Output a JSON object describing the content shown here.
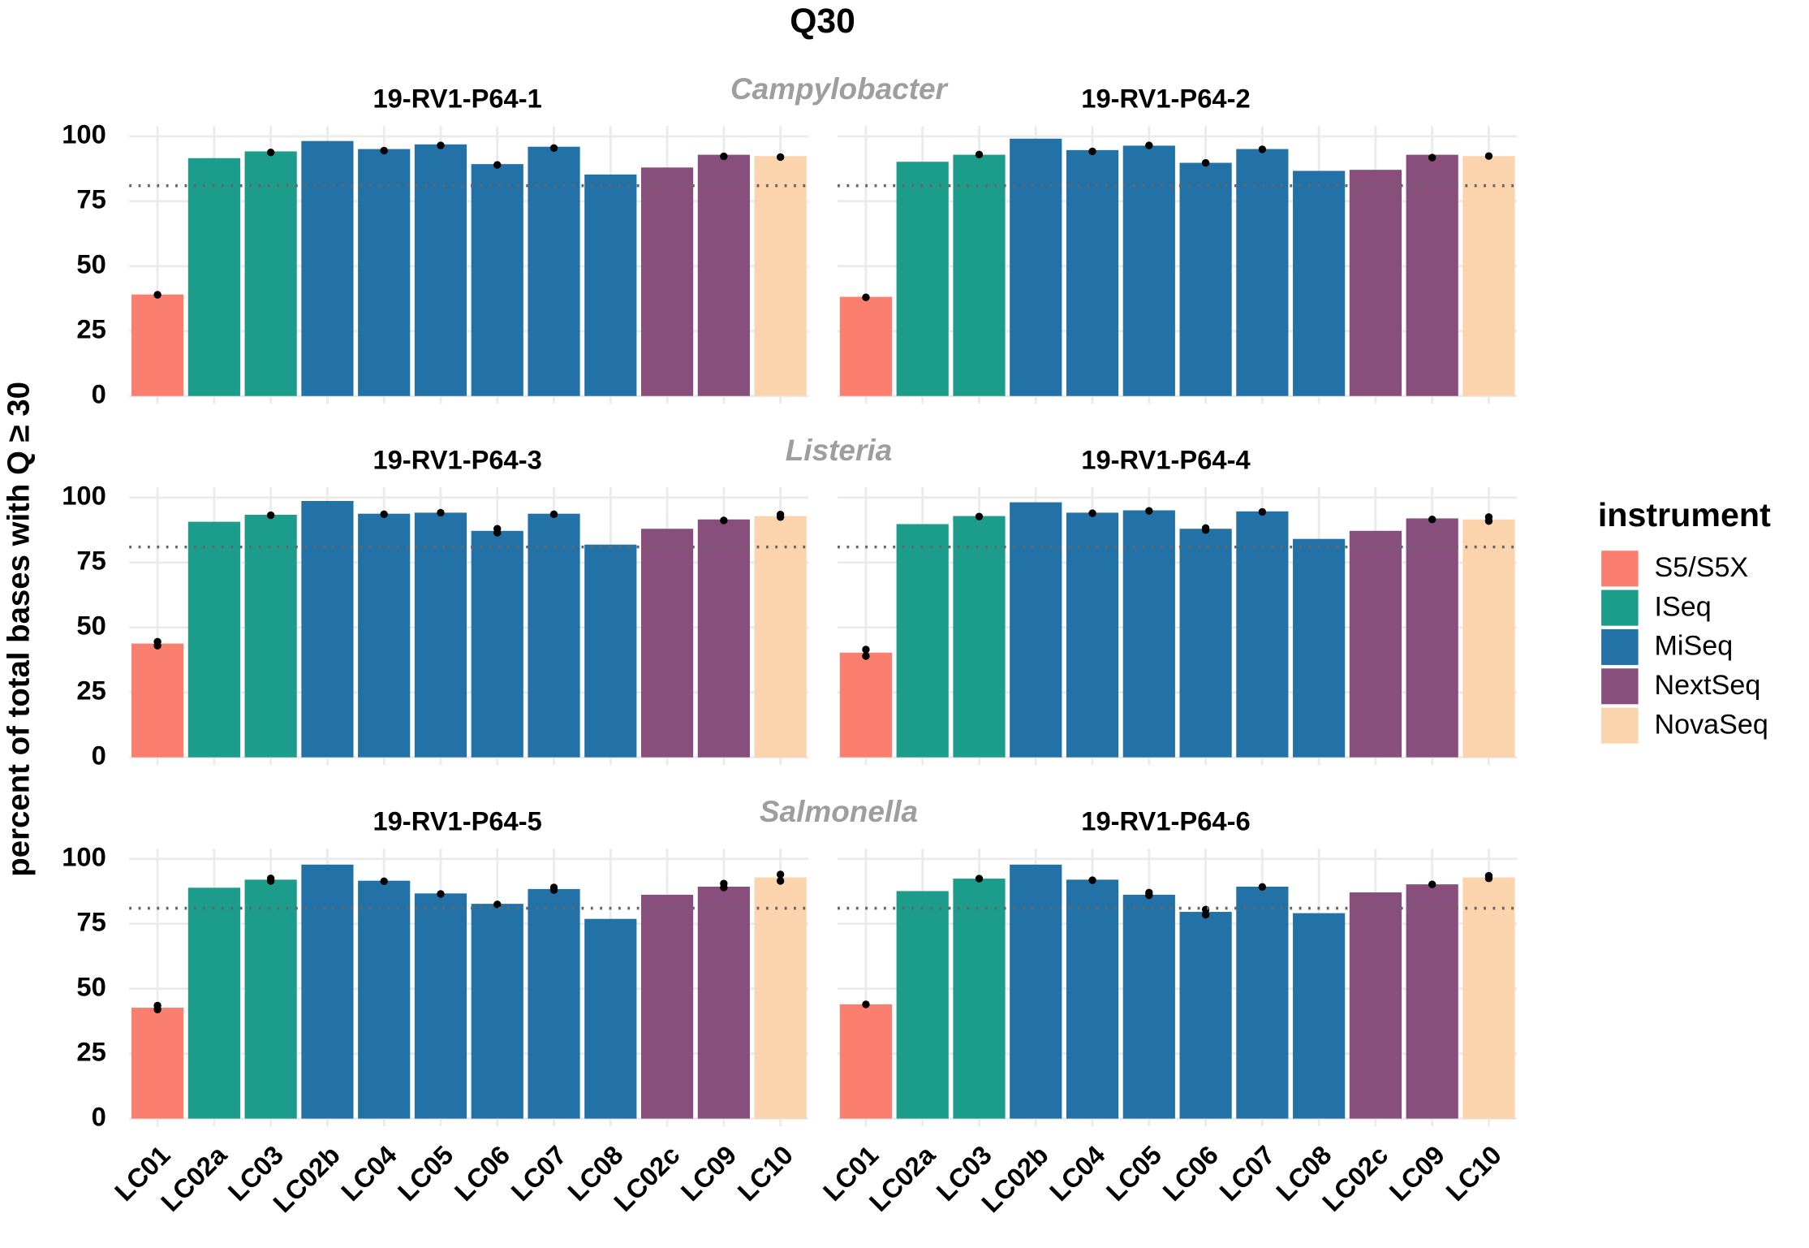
{
  "title": "Q30",
  "y_label": "percent of total bases with Q ≥ 30",
  "organisms": [
    "Campylobacter",
    "Listeria",
    "Salmonella"
  ],
  "legend": {
    "title": "instrument",
    "items": [
      {
        "name": "S5/S5X",
        "color": "#fa7f6f"
      },
      {
        "name": "ISeq",
        "color": "#1c9c8a"
      },
      {
        "name": "MiSeq",
        "color": "#2372a7"
      },
      {
        "name": "NextSeq",
        "color": "#894f7c"
      },
      {
        "name": "NovaSeq",
        "color": "#fbd4ad"
      }
    ]
  },
  "chart_data": [
    {
      "type": "bar",
      "title": "19-RV1-P64-1",
      "categories": [
        "LC01",
        "LC02a",
        "LC03",
        "LC02b",
        "LC04",
        "LC05",
        "LC06",
        "LC07",
        "LC08",
        "LC02c",
        "LC09",
        "LC10"
      ],
      "values": [
        39.1,
        91.6,
        94.2,
        98.2,
        95.1,
        96.9,
        89.3,
        96,
        85.3,
        88,
        92.9,
        92.4
      ],
      "colors": [
        "#fa7f6f",
        "#1c9c8a",
        "#1c9c8a",
        "#2372a7",
        "#2372a7",
        "#2372a7",
        "#2372a7",
        "#2372a7",
        "#2372a7",
        "#894f7c",
        "#894f7c",
        "#fbd4ad"
      ],
      "points": [
        [
          39
        ],
        null,
        [
          93.8
        ],
        null,
        [
          94.5
        ],
        [
          96.5
        ],
        [
          89
        ],
        [
          95.5
        ],
        null,
        null,
        [
          92.3
        ],
        [
          92
        ]
      ],
      "hline": 81,
      "ylim": [
        -3,
        104
      ],
      "yticks": [
        0,
        25,
        50,
        75,
        100
      ],
      "grid": true
    },
    {
      "type": "bar",
      "title": "19-RV1-P64-2",
      "categories": [
        "LC01",
        "LC02a",
        "LC03",
        "LC02b",
        "LC04",
        "LC05",
        "LC06",
        "LC07",
        "LC08",
        "LC02c",
        "LC09",
        "LC10"
      ],
      "values": [
        38.2,
        90.2,
        92.9,
        99.1,
        94.7,
        96.4,
        89.8,
        95.1,
        86.7,
        87.1,
        92.9,
        92.4
      ],
      "colors": [
        "#fa7f6f",
        "#1c9c8a",
        "#1c9c8a",
        "#2372a7",
        "#2372a7",
        "#2372a7",
        "#2372a7",
        "#2372a7",
        "#2372a7",
        "#894f7c",
        "#894f7c",
        "#fbd4ad"
      ],
      "points": [
        [
          38
        ],
        null,
        [
          93
        ],
        null,
        [
          94.2
        ],
        [
          96.5
        ],
        [
          89.8
        ],
        [
          95
        ],
        null,
        null,
        [
          91.8
        ],
        [
          92.4
        ]
      ],
      "hline": 81,
      "ylim": [
        -3,
        104
      ],
      "yticks": [
        0,
        25,
        50,
        75,
        100
      ],
      "grid": true
    },
    {
      "type": "bar",
      "title": "19-RV1-P64-3",
      "categories": [
        "LC01",
        "LC02a",
        "LC03",
        "LC02b",
        "LC04",
        "LC05",
        "LC06",
        "LC07",
        "LC08",
        "LC02c",
        "LC09",
        "LC10"
      ],
      "values": [
        43.8,
        90.7,
        93.4,
        98.7,
        93.8,
        94.2,
        87.2,
        93.8,
        81.9,
        88,
        91.6,
        92.9
      ],
      "colors": [
        "#fa7f6f",
        "#1c9c8a",
        "#1c9c8a",
        "#2372a7",
        "#2372a7",
        "#2372a7",
        "#2372a7",
        "#2372a7",
        "#2372a7",
        "#894f7c",
        "#894f7c",
        "#fbd4ad"
      ],
      "points": [
        [
          43,
          44.5
        ],
        null,
        [
          93.2
        ],
        null,
        [
          93.6
        ],
        [
          94.2
        ],
        [
          86.5,
          88
        ],
        [
          93.6
        ],
        null,
        null,
        [
          91.2
        ],
        [
          92.5,
          93.5
        ]
      ],
      "hline": 81,
      "ylim": [
        -3,
        104
      ],
      "yticks": [
        0,
        25,
        50,
        75,
        100
      ],
      "grid": true
    },
    {
      "type": "bar",
      "title": "19-RV1-P64-4",
      "categories": [
        "LC01",
        "LC02a",
        "LC03",
        "LC02b",
        "LC04",
        "LC05",
        "LC06",
        "LC07",
        "LC08",
        "LC02c",
        "LC09",
        "LC10"
      ],
      "values": [
        40.3,
        89.8,
        92.9,
        98.2,
        94.2,
        95.1,
        88,
        94.7,
        84.1,
        87.2,
        92,
        91.6
      ],
      "colors": [
        "#fa7f6f",
        "#1c9c8a",
        "#1c9c8a",
        "#2372a7",
        "#2372a7",
        "#2372a7",
        "#2372a7",
        "#2372a7",
        "#2372a7",
        "#894f7c",
        "#894f7c",
        "#fbd4ad"
      ],
      "points": [
        [
          39,
          41.5
        ],
        null,
        [
          92.7
        ],
        null,
        [
          94
        ],
        [
          94.9
        ],
        [
          87.5,
          88.3
        ],
        [
          94.5
        ],
        null,
        null,
        [
          91.6
        ],
        [
          91,
          92.5
        ]
      ],
      "hline": 81,
      "ylim": [
        -3,
        104
      ],
      "yticks": [
        0,
        25,
        50,
        75,
        100
      ],
      "grid": true
    },
    {
      "type": "bar",
      "title": "19-RV1-P64-5",
      "categories": [
        "LC01",
        "LC02a",
        "LC03",
        "LC02b",
        "LC04",
        "LC05",
        "LC06",
        "LC07",
        "LC08",
        "LC02c",
        "LC09",
        "LC10"
      ],
      "values": [
        42.7,
        88.9,
        92,
        97.8,
        91.6,
        86.7,
        82.7,
        88.4,
        76.9,
        86.2,
        89.3,
        92.9
      ],
      "colors": [
        "#fa7f6f",
        "#1c9c8a",
        "#1c9c8a",
        "#2372a7",
        "#2372a7",
        "#2372a7",
        "#2372a7",
        "#2372a7",
        "#2372a7",
        "#894f7c",
        "#894f7c",
        "#fbd4ad"
      ],
      "points": [
        [
          42,
          43.5
        ],
        null,
        [
          91.5,
          92.5
        ],
        null,
        [
          91.4
        ],
        [
          86.5
        ],
        [
          82.5
        ],
        [
          88,
          89
        ],
        null,
        null,
        [
          89,
          90.5
        ],
        [
          91.5,
          94
        ]
      ],
      "hline": 81,
      "ylim": [
        -3,
        104
      ],
      "yticks": [
        0,
        25,
        50,
        75,
        100
      ],
      "grid": true
    },
    {
      "type": "bar",
      "title": "19-RV1-P64-6",
      "categories": [
        "LC01",
        "LC02a",
        "LC03",
        "LC02b",
        "LC04",
        "LC05",
        "LC06",
        "LC07",
        "LC08",
        "LC02c",
        "LC09",
        "LC10"
      ],
      "values": [
        44,
        87.6,
        92.4,
        97.8,
        92,
        86.2,
        79.6,
        89.3,
        79.1,
        87.1,
        90.2,
        92.9
      ],
      "colors": [
        "#fa7f6f",
        "#1c9c8a",
        "#1c9c8a",
        "#2372a7",
        "#2372a7",
        "#2372a7",
        "#2372a7",
        "#2372a7",
        "#2372a7",
        "#894f7c",
        "#894f7c",
        "#fbd4ad"
      ],
      "points": [
        [
          44
        ],
        null,
        [
          92.4
        ],
        null,
        [
          91.8
        ],
        [
          86,
          87
        ],
        [
          78.5,
          80.5
        ],
        [
          89.2
        ],
        null,
        null,
        [
          90.2
        ],
        [
          92.5,
          93.5
        ]
      ],
      "hline": 81,
      "ylim": [
        -3,
        104
      ],
      "yticks": [
        0,
        25,
        50,
        75,
        100
      ],
      "grid": true
    }
  ]
}
